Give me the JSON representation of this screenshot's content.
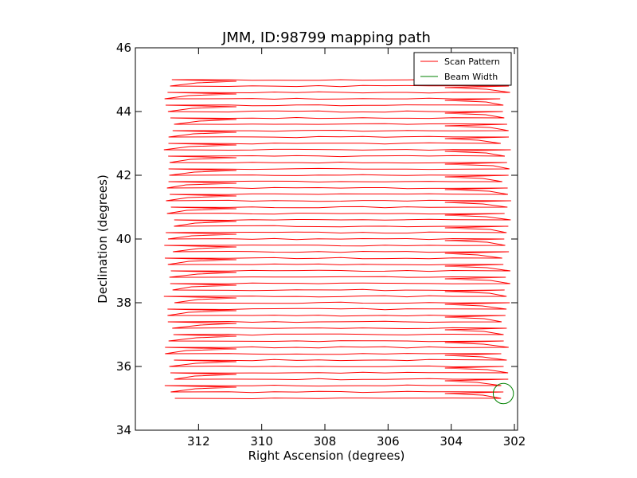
{
  "chart_data": {
    "type": "line",
    "title": "JMM, ID:98799 mapping path",
    "xlabel": "Right Ascension (degrees)",
    "ylabel": "Declination (degrees)",
    "xlim": [
      314.0,
      301.9
    ],
    "ylim": [
      34,
      46
    ],
    "x_reversed": true,
    "xticks": [
      312,
      310,
      308,
      306,
      304,
      302
    ],
    "xtick_labels": [
      "312",
      "310",
      "308",
      "306",
      "304",
      "302"
    ],
    "yticks": [
      34,
      36,
      38,
      40,
      42,
      44,
      46
    ],
    "ytick_labels": [
      "34",
      "36",
      "38",
      "40",
      "42",
      "44",
      "46"
    ],
    "grid": false,
    "legend_position": "top-right",
    "series": [
      {
        "name": "Scan Pattern",
        "color": "#ff0000",
        "pattern": "raster",
        "dec_start": 35.0,
        "dec_end": 45.0,
        "row_step": 0.2,
        "ra_west": 312.9,
        "ra_east": 302.2,
        "ra_turn_west": 311.0,
        "ra_turn_east": 304.0,
        "turn_hook_dec": 0.4
      },
      {
        "name": "Beam Width",
        "color": "#008000",
        "shape": "circle",
        "center_ra": 302.35,
        "center_dec": 35.15,
        "radius_deg": 0.32
      }
    ]
  }
}
